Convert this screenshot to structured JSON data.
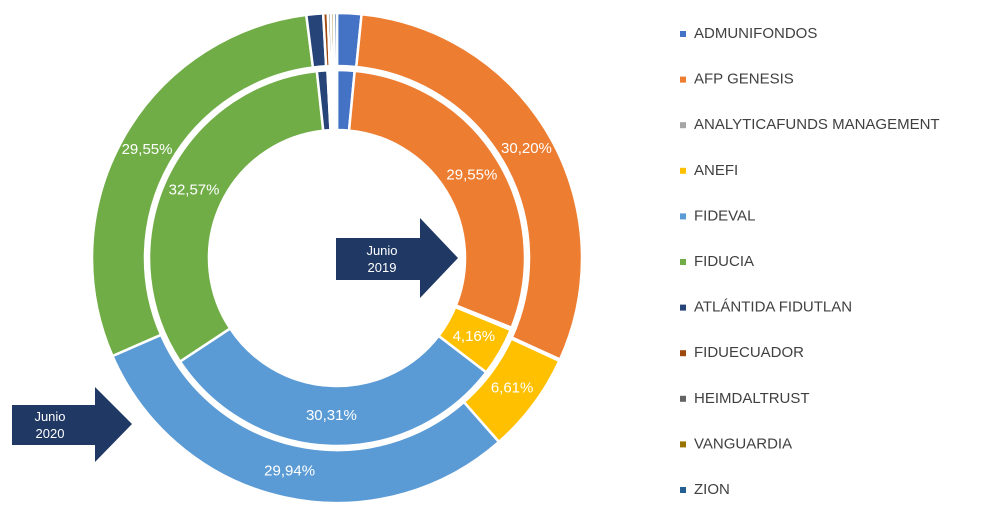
{
  "chart_data": {
    "type": "pie",
    "categories": [
      "ADMUNIFONDOS",
      "AFP GENESIS",
      "ANALYTICAFUNDS MANAGEMENT",
      "ANEFI",
      "FIDEVAL",
      "FIDUCIA",
      "ATLÁNTIDA FIDUTLAN",
      "FIDUECUADOR",
      "HEIMDALTRUST",
      "VANGUARDIA",
      "ZION"
    ],
    "colors": [
      "#4472c4",
      "#ed7d31",
      "#a5a5a5",
      "#ffc000",
      "#5b9bd5",
      "#70ad47",
      "#264478",
      "#9e480e",
      "#636363",
      "#997300",
      "#255e91"
    ],
    "series": [
      {
        "name": "Junio 2020",
        "values": [
          1.6,
          30.2,
          0.1,
          6.61,
          29.94,
          29.55,
          1.1,
          0.3,
          0.2,
          0.2,
          0.2
        ],
        "value_labels": [
          null,
          "30,20%",
          null,
          "6,61%",
          "29,94%",
          "29,55%",
          null,
          null,
          null,
          null,
          null
        ]
      },
      {
        "name": "Junio 2019",
        "values": [
          1.5,
          29.55,
          0.2,
          4.16,
          30.31,
          32.57,
          0.9,
          0.2,
          0.2,
          0.2,
          0.21
        ],
        "value_labels": [
          null,
          "29,55%",
          null,
          "4,16%",
          "30,31%",
          "32,57%",
          null,
          null,
          null,
          null,
          null
        ]
      }
    ],
    "legend": "right"
  }
}
